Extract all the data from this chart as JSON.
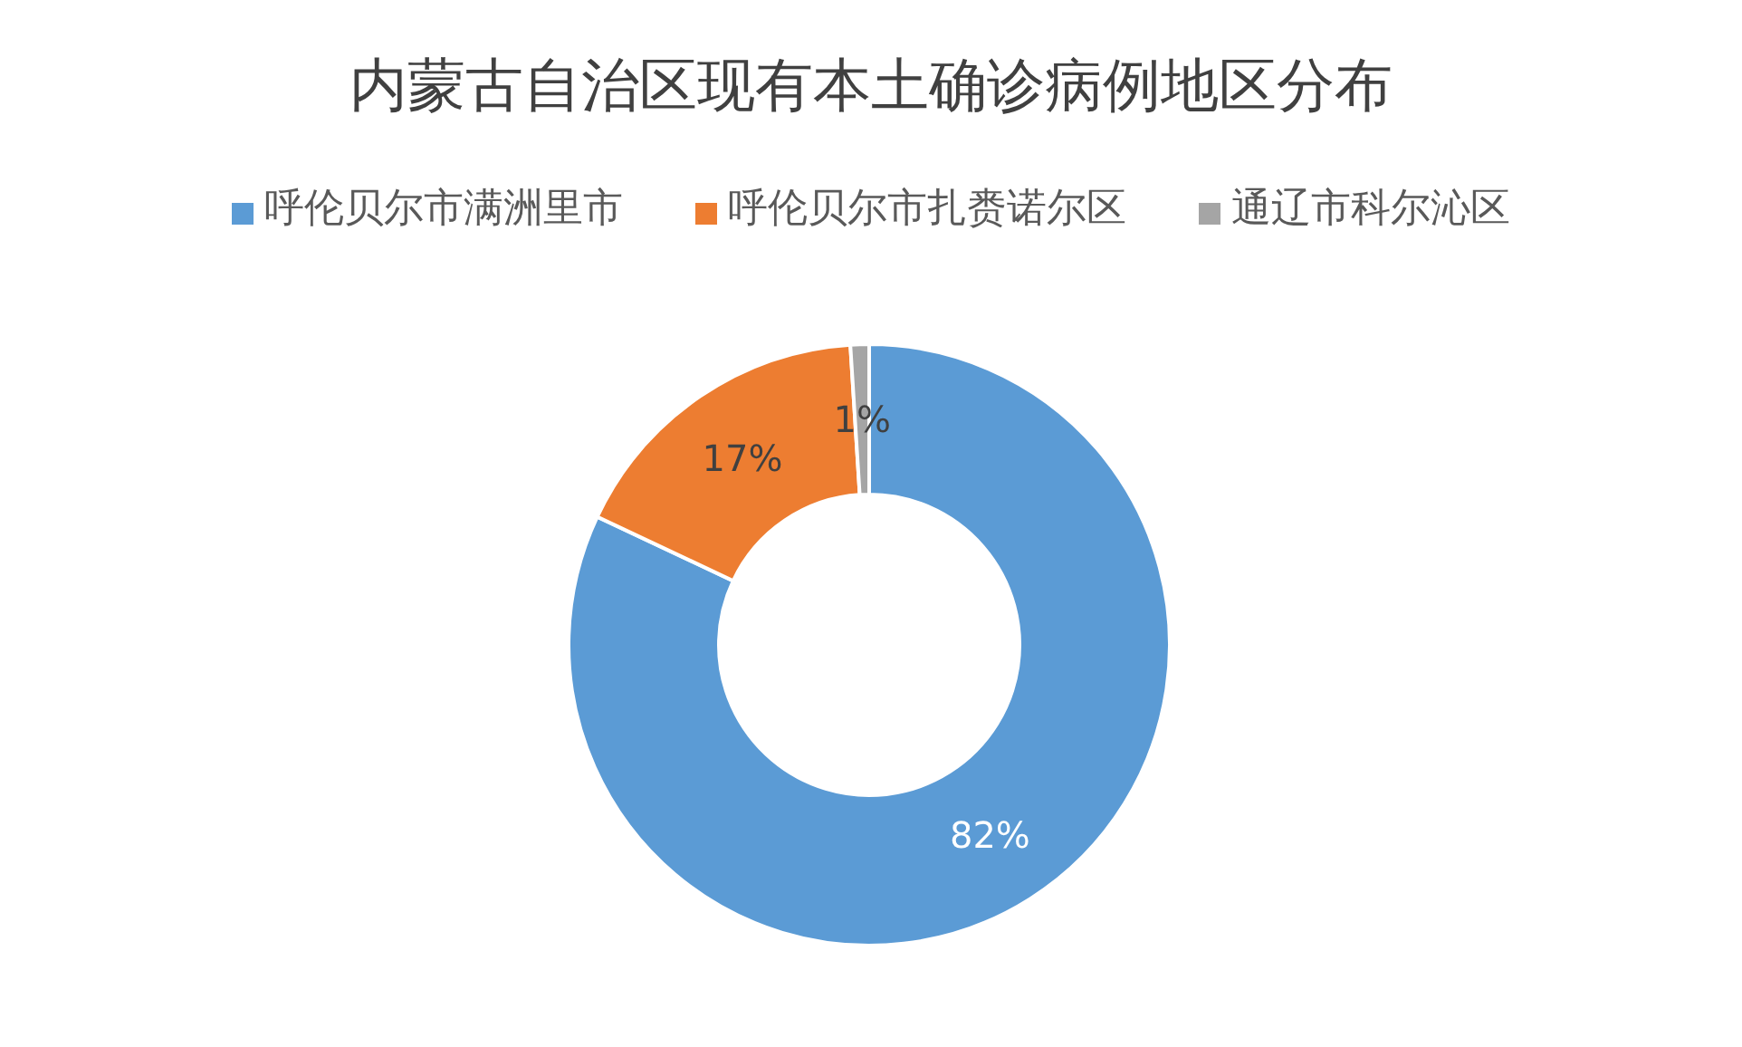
{
  "chart_data": {
    "type": "donut",
    "title": "内蒙古自治区现有本土确诊病例地区分布",
    "categories": [
      "呼伦贝尔市满洲里市",
      "呼伦贝尔市扎赉诺尔区",
      "通辽市科尔沁区"
    ],
    "values": [
      82,
      17,
      1
    ],
    "colors": [
      "#5b9bd5",
      "#ed7d31",
      "#a5a5a5"
    ],
    "value_labels": [
      "82%",
      "17%",
      "1%"
    ],
    "legend": "top"
  }
}
